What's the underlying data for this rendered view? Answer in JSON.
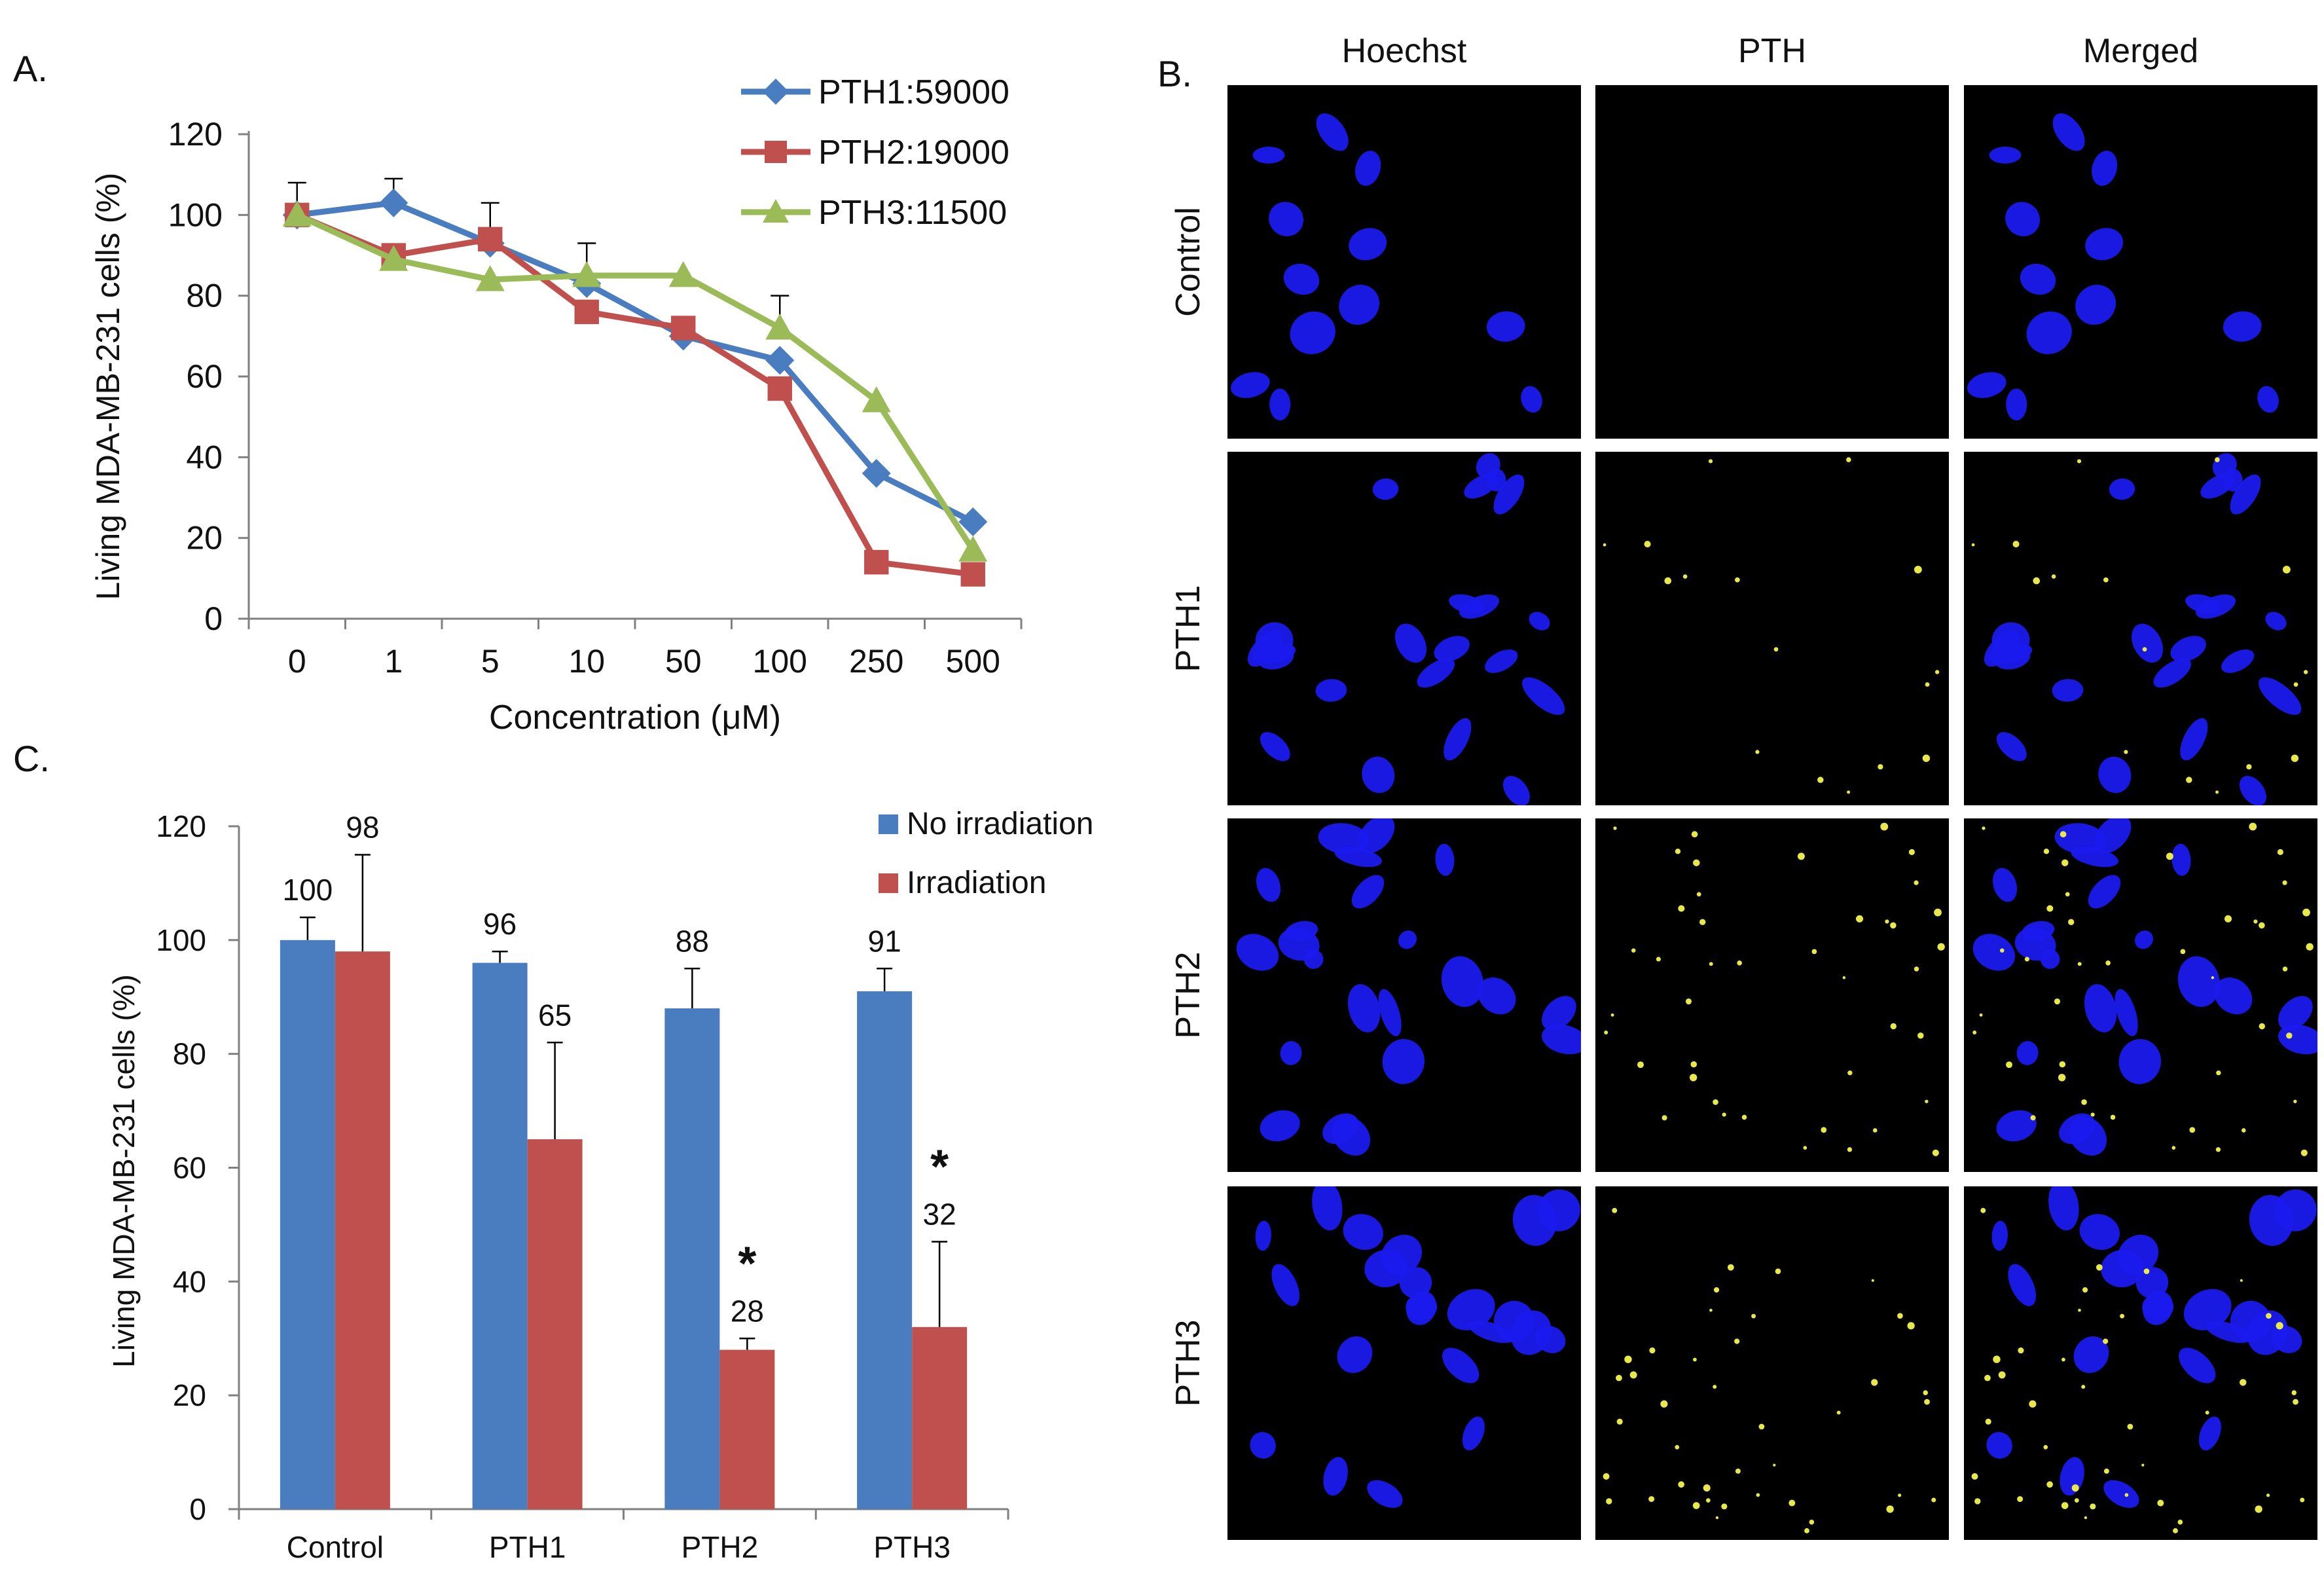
{
  "panels": {
    "a": "A.",
    "b": "B.",
    "c": "C."
  },
  "chart_data": [
    {
      "type": "line",
      "ylabel": "Living MDA-MB-231 cells (%)",
      "xlabel": "Concentration (μM)",
      "categories": [
        "0",
        "1",
        "5",
        "10",
        "50",
        "100",
        "250",
        "500"
      ],
      "ylim": [
        0,
        120
      ],
      "yticks": [
        "0",
        "20",
        "40",
        "60",
        "80",
        "100",
        "120"
      ],
      "legend_position": "top-right",
      "series": [
        {
          "name": "PTH1:59000",
          "color": "#4a7dc0",
          "marker": "diamond",
          "values": [
            100,
            103,
            93,
            83,
            70,
            64,
            36,
            24
          ],
          "err": [
            8,
            6,
            10,
            10,
            0,
            0,
            0,
            0
          ]
        },
        {
          "name": "PTH2:19000",
          "color": "#c0504d",
          "marker": "square",
          "values": [
            100,
            90,
            94,
            76,
            72,
            57,
            14,
            11
          ],
          "err": [
            0,
            0,
            0,
            0,
            0,
            0,
            0,
            0
          ]
        },
        {
          "name": "PTH3:11500",
          "color": "#9bbb59",
          "marker": "triangle",
          "values": [
            100,
            89,
            84,
            85,
            85,
            72,
            54,
            17
          ],
          "err": [
            0,
            0,
            0,
            0,
            0,
            8,
            0,
            0
          ]
        }
      ]
    },
    {
      "type": "bar",
      "ylabel": "Living MDA-MB-231 cells (%)",
      "categories": [
        "Control",
        "PTH1",
        "PTH2",
        "PTH3"
      ],
      "ylim": [
        0,
        120
      ],
      "yticks": [
        "0",
        "20",
        "40",
        "60",
        "80",
        "100",
        "120"
      ],
      "legend_position": "top-right",
      "series": [
        {
          "name": "No irradiation",
          "color": "#4a7dc0",
          "values": [
            100,
            96,
            88,
            91
          ],
          "labels": [
            "100",
            "96",
            "88",
            "91"
          ],
          "err": [
            4,
            2,
            7,
            4
          ]
        },
        {
          "name": "Irradiation",
          "color": "#c0504d",
          "values": [
            98,
            65,
            28,
            32
          ],
          "labels": [
            "98",
            "65",
            "28",
            "32"
          ],
          "err": [
            17,
            17,
            2,
            15
          ]
        }
      ],
      "significance": [
        "",
        "",
        "*",
        "*"
      ]
    }
  ],
  "microscopy": {
    "columns": [
      "Hoechst",
      "PTH",
      "Merged"
    ],
    "rows": [
      "Control",
      "PTH1",
      "PTH2",
      "PTH3"
    ]
  }
}
